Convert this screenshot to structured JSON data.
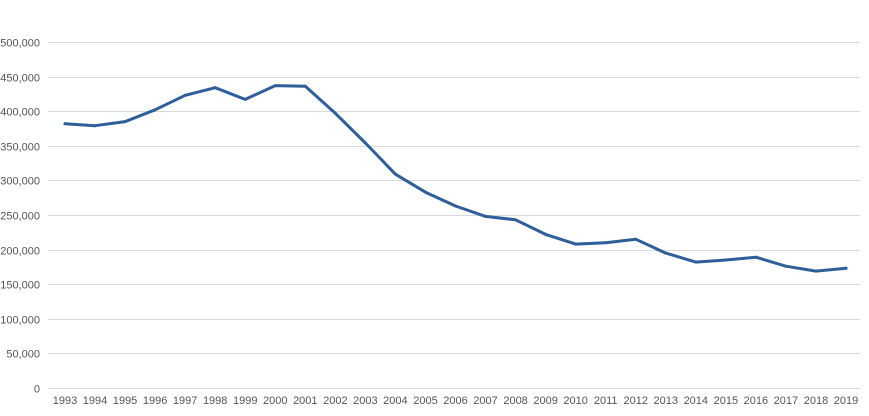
{
  "chart_data": {
    "type": "line",
    "title": "",
    "xlabel": "",
    "ylabel": "",
    "x": [
      "1993",
      "1994",
      "1995",
      "1996",
      "1997",
      "1998",
      "1999",
      "2000",
      "2001",
      "2002",
      "2003",
      "2004",
      "2005",
      "2006",
      "2007",
      "2008",
      "2009",
      "2010",
      "2011",
      "2012",
      "2013",
      "2014",
      "2015",
      "2016",
      "2017",
      "2018",
      "2019"
    ],
    "series": [
      {
        "values": [
          382000,
          379000,
          385000,
          402000,
          423000,
          434000,
          417000,
          437000,
          436000,
          397000,
          354000,
          309000,
          283000,
          263000,
          248000,
          243000,
          222000,
          208000,
          210000,
          215000,
          195000,
          182000,
          185000,
          189000,
          176000,
          169000,
          173000
        ],
        "color": "#2e5f9a"
      }
    ],
    "ylim": [
      0,
      500000
    ],
    "yticks": [
      "0",
      "50,000",
      "100,000",
      "150,000",
      "200,000",
      "250,000",
      "300,000",
      "350,000",
      "400,000",
      "450,000",
      "500,000"
    ],
    "grid": true,
    "legend": "none"
  }
}
